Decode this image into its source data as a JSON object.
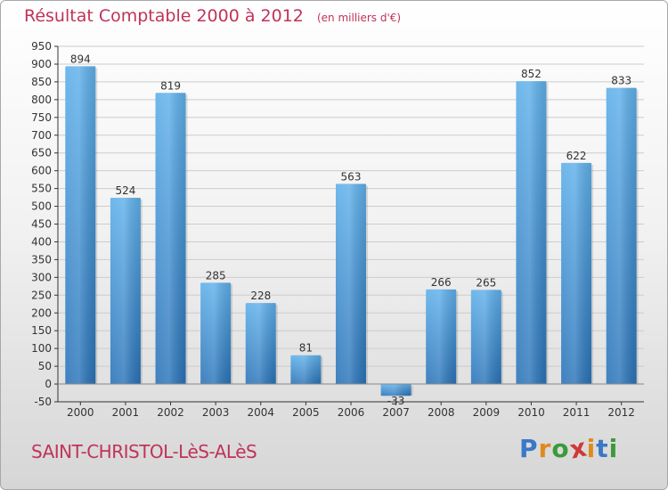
{
  "chart_data": {
    "type": "bar",
    "title": "Résultat Comptable 2000 à 2012",
    "subtitle": "(en milliers d'€)",
    "categories": [
      "2000",
      "2001",
      "2002",
      "2003",
      "2004",
      "2005",
      "2006",
      "2007",
      "2008",
      "2009",
      "2010",
      "2011",
      "2012"
    ],
    "values": [
      894,
      524,
      819,
      285,
      228,
      81,
      563,
      -33,
      266,
      265,
      852,
      622,
      833
    ],
    "value_labels": [
      "894",
      "524",
      "819",
      "285",
      "228",
      "81",
      "563",
      "-33",
      "266",
      "265",
      "852",
      "622",
      "833"
    ],
    "ylim": [
      -50,
      950
    ],
    "yticks": [
      -50,
      0,
      50,
      100,
      150,
      200,
      250,
      300,
      350,
      400,
      450,
      500,
      550,
      600,
      650,
      700,
      750,
      800,
      850,
      900,
      950
    ],
    "ytick_labels": [
      "-50",
      "0",
      "50",
      "100",
      "150",
      "200",
      "250",
      "300",
      "350",
      "400",
      "450",
      "500",
      "550",
      "600",
      "650",
      "700",
      "750",
      "800",
      "850",
      "900",
      "950"
    ],
    "xlabel": "",
    "ylabel": "",
    "grid": true,
    "bar_color": "#3f8fd2",
    "bar_color_light": "#5fb0ea",
    "bar_color_dark": "#2a73b8"
  },
  "footer": {
    "city": "SAINT-CHRISTOL-LèS-ALèS",
    "logo_letters": [
      "P",
      "r",
      "o",
      "x",
      "i",
      "t",
      "i"
    ],
    "logo_colors": [
      "#3a78c8",
      "#e08a1e",
      "#3a9a3a",
      "#d03838",
      "#e08a1e",
      "#3a78c8",
      "#3a9a3a"
    ]
  },
  "colors": {
    "title": "#c0335a",
    "axis": "#333333",
    "grid": "#cccccc"
  }
}
